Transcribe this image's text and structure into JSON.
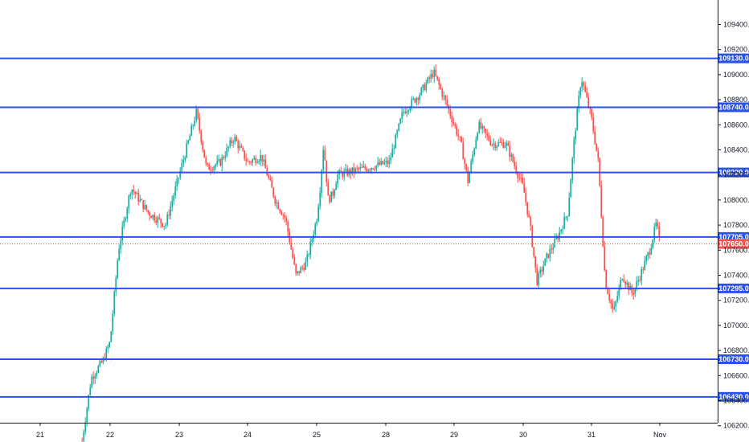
{
  "chart_data": {
    "type": "candlestick",
    "title": "",
    "xlabel": "",
    "ylabel": "",
    "ylim": [
      106050,
      109500
    ],
    "grid": false,
    "legend": "none",
    "colors": {
      "up": "#26a69a",
      "down": "#ef5350",
      "level_line": "#2a52e8",
      "level_label_bg": "#2a52e8",
      "last_price_bg": "#ef5350",
      "last_price_line": "#ef5350",
      "axis": "#131722",
      "background": "#ffffff"
    },
    "x_ticks": [
      "21",
      "22",
      "23",
      "24",
      "25",
      "28",
      "29",
      "30",
      "31",
      "Nov"
    ],
    "y_ticks": [
      106200.0,
      106400.0,
      106600.0,
      106800.0,
      107000.0,
      107200.0,
      107400.0,
      107600.0,
      107800.0,
      108000.0,
      108200.0,
      108400.0,
      108600.0,
      108800.0,
      109000.0,
      109200.0,
      109400.0
    ],
    "horizontal_levels": [
      109130.0,
      108740.0,
      108220.0,
      107705.0,
      107295.0,
      106730.0,
      106430.0
    ],
    "last_price": 107650.0,
    "anchors": [
      [
        21.6,
        106080
      ],
      [
        21.73,
        106580
      ],
      [
        21.9,
        106720
      ],
      [
        22.0,
        106870
      ],
      [
        22.12,
        107600
      ],
      [
        22.3,
        108100
      ],
      [
        22.55,
        107900
      ],
      [
        22.8,
        107800
      ],
      [
        23.05,
        108300
      ],
      [
        23.25,
        108700
      ],
      [
        23.4,
        108250
      ],
      [
        23.6,
        108300
      ],
      [
        23.8,
        108500
      ],
      [
        24.0,
        108300
      ],
      [
        24.2,
        108350
      ],
      [
        24.4,
        108000
      ],
      [
        24.55,
        107850
      ],
      [
        24.7,
        107400
      ],
      [
        24.85,
        107500
      ],
      [
        25.0,
        107850
      ],
      [
        25.15,
        108100
      ],
      [
        25.3,
        108450
      ],
      [
        25.5,
        108000
      ],
      [
        25.7,
        108050
      ],
      [
        25.9,
        108200
      ],
      [
        28.05,
        108300
      ],
      [
        28.25,
        108700
      ],
      [
        28.5,
        108850
      ],
      [
        28.7,
        109020
      ],
      [
        28.9,
        108750
      ],
      [
        29.1,
        108450
      ],
      [
        29.2,
        108150
      ],
      [
        29.35,
        108600
      ],
      [
        29.55,
        108450
      ],
      [
        29.75,
        108450
      ],
      [
        30.0,
        108100
      ],
      [
        30.1,
        107800
      ],
      [
        30.2,
        107350
      ],
      [
        30.35,
        107550
      ],
      [
        30.5,
        107700
      ],
      [
        30.65,
        107900
      ],
      [
        30.75,
        108500
      ],
      [
        30.85,
        108980
      ],
      [
        31.0,
        108650
      ],
      [
        31.1,
        108300
      ],
      [
        31.2,
        107350
      ],
      [
        31.32,
        107100
      ],
      [
        31.45,
        107400
      ],
      [
        31.6,
        107250
      ],
      [
        31.75,
        107450
      ],
      [
        31.85,
        107600
      ],
      [
        31.95,
        107820
      ],
      [
        32.0,
        107650
      ]
    ]
  }
}
